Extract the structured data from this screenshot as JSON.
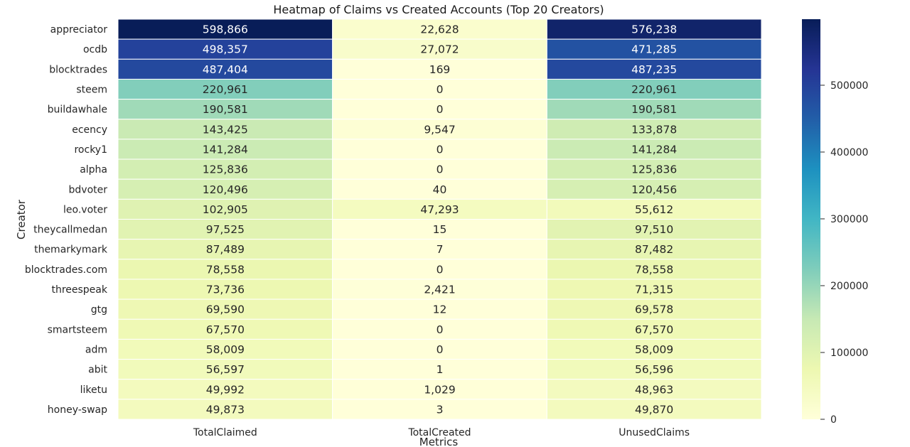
{
  "chart_data": {
    "type": "heatmap",
    "title": "Heatmap of Claims vs Created Accounts (Top 20 Creators)",
    "xlabel": "Metrics",
    "ylabel": "Creator",
    "columns": [
      "TotalClaimed",
      "TotalCreated",
      "UnusedClaims"
    ],
    "rows": [
      "appreciator",
      "ocdb",
      "blocktrades",
      "steem",
      "buildawhale",
      "ecency",
      "rocky1",
      "alpha",
      "bdvoter",
      "leo.voter",
      "theycallmedan",
      "themarkymark",
      "blocktrades.com",
      "threespeak",
      "gtg",
      "smartsteem",
      "adm",
      "abit",
      "liketu",
      "honey-swap"
    ],
    "values": [
      [
        598866,
        22628,
        576238
      ],
      [
        498357,
        27072,
        471285
      ],
      [
        487404,
        169,
        487235
      ],
      [
        220961,
        0,
        220961
      ],
      [
        190581,
        0,
        190581
      ],
      [
        143425,
        9547,
        133878
      ],
      [
        141284,
        0,
        141284
      ],
      [
        125836,
        0,
        125836
      ],
      [
        120496,
        40,
        120456
      ],
      [
        102905,
        47293,
        55612
      ],
      [
        97525,
        15,
        97510
      ],
      [
        87489,
        7,
        87482
      ],
      [
        78558,
        0,
        78558
      ],
      [
        73736,
        2421,
        71315
      ],
      [
        69590,
        12,
        69578
      ],
      [
        67570,
        0,
        67570
      ],
      [
        58009,
        0,
        58009
      ],
      [
        56597,
        1,
        56596
      ],
      [
        49992,
        1029,
        48963
      ],
      [
        49873,
        3,
        49870
      ]
    ],
    "colormap": "YlGnBu",
    "colorbar": {
      "min": 0,
      "max": 598866,
      "ticks": [
        0,
        100000,
        200000,
        300000,
        400000,
        500000
      ],
      "tick_labels": [
        "0",
        "100000",
        "200000",
        "300000",
        "400000",
        "500000"
      ]
    },
    "annotations": "thousands-separated values in each cell",
    "grid": false,
    "legend": "colorbar-right"
  }
}
